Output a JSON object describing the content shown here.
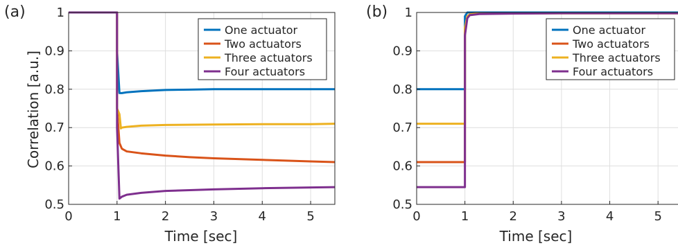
{
  "chart_data": [
    {
      "type": "line",
      "panel_label": "(a)",
      "xlabel": "Time [sec]",
      "ylabel": "Correlation [a.u.]",
      "xlim": [
        0,
        5.5
      ],
      "ylim": [
        0.5,
        1.0
      ],
      "xticks": [
        "0",
        "1",
        "2",
        "3",
        "4",
        "5"
      ],
      "yticks": [
        "0.5",
        "0.6",
        "0.7",
        "0.8",
        "0.9",
        "1"
      ],
      "grid": true,
      "legend_position": "top-right",
      "series": [
        {
          "name": "One actuator",
          "color": "#0072BD",
          "x": [
            0,
            1.0,
            1.0,
            1.05,
            1.1,
            1.2,
            1.5,
            2,
            2.5,
            3,
            4,
            5,
            5.5
          ],
          "y": [
            1.0,
            1.0,
            0.9,
            0.79,
            0.79,
            0.792,
            0.795,
            0.798,
            0.799,
            0.8,
            0.8,
            0.8,
            0.8
          ]
        },
        {
          "name": "Two actuators",
          "color": "#D95319",
          "x": [
            0,
            1.0,
            1.0,
            1.05,
            1.1,
            1.2,
            1.5,
            2,
            2.5,
            3,
            3.5,
            4,
            5,
            5.5
          ],
          "y": [
            1.0,
            1.0,
            0.75,
            0.66,
            0.645,
            0.638,
            0.633,
            0.627,
            0.623,
            0.62,
            0.618,
            0.616,
            0.612,
            0.61
          ]
        },
        {
          "name": "Three actuators",
          "color": "#EDB120",
          "x": [
            0,
            1.0,
            1.0,
            1.05,
            1.08,
            1.1,
            1.2,
            1.5,
            2,
            3,
            4,
            5,
            5.5
          ],
          "y": [
            1.0,
            1.0,
            0.75,
            0.735,
            0.698,
            0.7,
            0.702,
            0.705,
            0.707,
            0.708,
            0.709,
            0.709,
            0.71
          ]
        },
        {
          "name": "Four actuators",
          "color": "#7E2F8E",
          "x": [
            0,
            1.0,
            1.0,
            1.05,
            1.1,
            1.2,
            1.5,
            2,
            2.5,
            3,
            4,
            5,
            5.5
          ],
          "y": [
            1.0,
            1.0,
            0.7,
            0.515,
            0.52,
            0.525,
            0.53,
            0.535,
            0.537,
            0.539,
            0.542,
            0.544,
            0.545
          ]
        }
      ]
    },
    {
      "type": "line",
      "panel_label": "(b)",
      "xlabel": "Time [sec]",
      "ylabel": "",
      "xlim": [
        0,
        5.5
      ],
      "ylim": [
        0.5,
        1.0
      ],
      "xticks": [
        "0",
        "1",
        "2",
        "3",
        "4",
        "5"
      ],
      "yticks": [
        "0.5",
        "0.6",
        "0.7",
        "0.8",
        "0.9",
        "1"
      ],
      "grid": true,
      "legend_position": "top-right",
      "series": [
        {
          "name": "One actuator",
          "color": "#0072BD",
          "x": [
            0,
            1.0,
            1.0,
            1.05,
            1.2,
            2,
            3,
            4,
            5,
            5.5
          ],
          "y": [
            0.8,
            0.8,
            0.99,
            1.0,
            1.0,
            1.0,
            1.0,
            1.0,
            1.0,
            1.0
          ]
        },
        {
          "name": "Two actuators",
          "color": "#D95319",
          "x": [
            0,
            1.0,
            1.0,
            1.05,
            1.1,
            1.3,
            2,
            3,
            4,
            5,
            5.5
          ],
          "y": [
            0.61,
            0.61,
            0.95,
            0.99,
            0.995,
            0.997,
            0.998,
            0.998,
            0.998,
            0.998,
            0.998
          ]
        },
        {
          "name": "Three actuators",
          "color": "#EDB120",
          "x": [
            0,
            1.0,
            1.0,
            1.05,
            1.1,
            1.3,
            2,
            3,
            4,
            5,
            5.5
          ],
          "y": [
            0.71,
            0.71,
            0.96,
            0.99,
            0.995,
            0.997,
            0.998,
            0.998,
            0.998,
            0.998,
            0.998
          ]
        },
        {
          "name": "Four actuators",
          "color": "#7E2F8E",
          "x": [
            0,
            1.0,
            1.0,
            1.05,
            1.1,
            1.3,
            2,
            3,
            4,
            5,
            5.5
          ],
          "y": [
            0.545,
            0.545,
            0.94,
            0.985,
            0.993,
            0.996,
            0.997,
            0.998,
            0.998,
            0.998,
            0.998
          ]
        }
      ]
    }
  ]
}
